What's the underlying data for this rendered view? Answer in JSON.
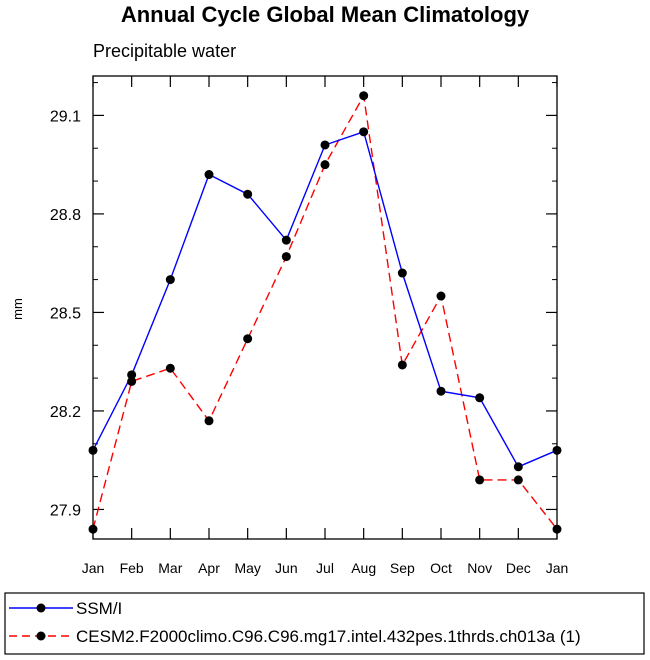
{
  "chart_data": {
    "type": "line",
    "title": "Annual Cycle Global Mean Climatology",
    "subtitle": "Precipitable water",
    "ylabel": "mm",
    "xlabel": "",
    "categories": [
      "Jan",
      "Feb",
      "Mar",
      "Apr",
      "May",
      "Jun",
      "Jul",
      "Aug",
      "Sep",
      "Oct",
      "Nov",
      "Dec",
      "Jan"
    ],
    "ylim": [
      27.81,
      29.22
    ],
    "yticks": [
      27.9,
      28.2,
      28.5,
      28.8,
      29.1
    ],
    "ytick_labels": [
      "27.9",
      "28.2",
      "28.5",
      "28.8",
      "29.1"
    ],
    "grid": false,
    "legend_position": "bottom",
    "series": [
      {
        "name": "SSM/I",
        "color": "#0000ff",
        "line_style": "solid",
        "marker": "filled-circle",
        "values": [
          28.08,
          28.31,
          28.6,
          28.92,
          28.86,
          28.72,
          29.01,
          29.05,
          28.62,
          28.26,
          28.24,
          28.03,
          28.08
        ]
      },
      {
        "name": "CESM2.F2000climo.C96.C96.mg17.intel.432pes.1thrds.ch013a (1)",
        "color": "#ff0000",
        "line_style": "dashed",
        "marker": "filled-circle",
        "values": [
          27.84,
          28.29,
          28.33,
          28.17,
          28.42,
          28.67,
          28.95,
          29.16,
          28.34,
          28.55,
          27.99,
          27.99,
          27.84
        ]
      }
    ]
  }
}
